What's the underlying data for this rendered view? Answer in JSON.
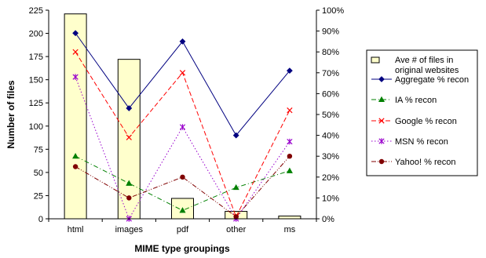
{
  "chart_data": {
    "type": "bar+line",
    "categories": [
      "html",
      "images",
      "pdf",
      "other",
      "ms"
    ],
    "xlabel": "MIME type groupings",
    "ylabel_left": "Number of files",
    "ylim_left": [
      0,
      225
    ],
    "yticks_left": [
      "0",
      "25",
      "50",
      "75",
      "100",
      "125",
      "150",
      "175",
      "200",
      "225"
    ],
    "ylim_right": [
      0,
      100
    ],
    "yticks_right": [
      "0%",
      "10%",
      "20%",
      "30%",
      "40%",
      "50%",
      "60%",
      "70%",
      "80%",
      "90%",
      "100%"
    ],
    "grid": false,
    "legend_position": "right",
    "bars": {
      "name": "Ave # of files in original websites",
      "axis": "left",
      "values": [
        221,
        172,
        22,
        8,
        3
      ],
      "color": "#ffffcc"
    },
    "series": [
      {
        "name": "Aggregate % recon",
        "axis": "right",
        "marker": "diamond",
        "dash": "solid",
        "color": "#000080",
        "values": [
          89,
          53,
          85,
          40,
          71
        ]
      },
      {
        "name": "IA  % recon",
        "axis": "right",
        "marker": "triangle",
        "dash": "dashdot",
        "color": "#008000",
        "values": [
          30,
          17,
          4,
          15,
          23
        ]
      },
      {
        "name": "Google % recon",
        "axis": "right",
        "marker": "x",
        "dash": "dashed",
        "color": "#ff0000",
        "values": [
          80,
          39,
          70,
          1,
          52
        ]
      },
      {
        "name": "MSN % recon",
        "axis": "right",
        "marker": "star",
        "dash": "dotted",
        "color": "#9900cc",
        "values": [
          68,
          0,
          44,
          0,
          37
        ]
      },
      {
        "name": "Yahoo! % recon",
        "axis": "right",
        "marker": "circle",
        "dash": "dashdotdot",
        "color": "#800000",
        "values": [
          25,
          10,
          20,
          1,
          30
        ]
      }
    ]
  }
}
